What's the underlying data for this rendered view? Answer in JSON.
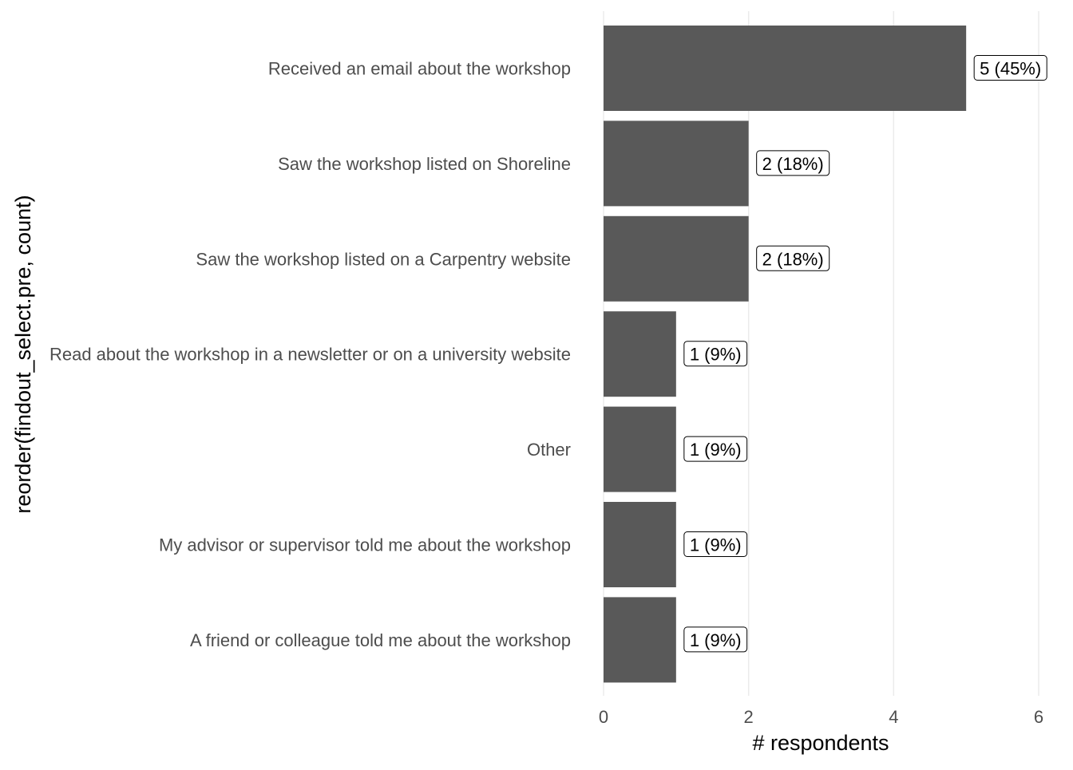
{
  "chart_data": {
    "type": "bar",
    "orientation": "horizontal",
    "categories": [
      "Received an email about the workshop",
      "Saw the workshop listed on Shoreline",
      "Saw the workshop listed on a Carpentry website",
      "Read about the workshop in a newsletter or on a university website",
      "Other",
      "My advisor or supervisor told me about the workshop",
      "A friend or colleague told me about the workshop"
    ],
    "values": [
      5,
      2,
      2,
      1,
      1,
      1,
      1
    ],
    "data_labels": [
      "5 (45%)",
      "2 (18%)",
      "2 (18%)",
      "1 (9%)",
      "1 (9%)",
      "1 (9%)",
      "1 (9%)"
    ],
    "xlabel": "# respondents",
    "ylabel": "reorder(findout_select.pre, count)",
    "xlim": [
      0,
      6
    ],
    "xticks": [
      "0",
      "2",
      "4",
      "6"
    ],
    "grid": "vertical major",
    "legend": "none",
    "colors": {
      "bar": "#595959",
      "grid": "#ebebeb",
      "tick_text": "#4d4d4d",
      "title_text": "#000000"
    }
  }
}
